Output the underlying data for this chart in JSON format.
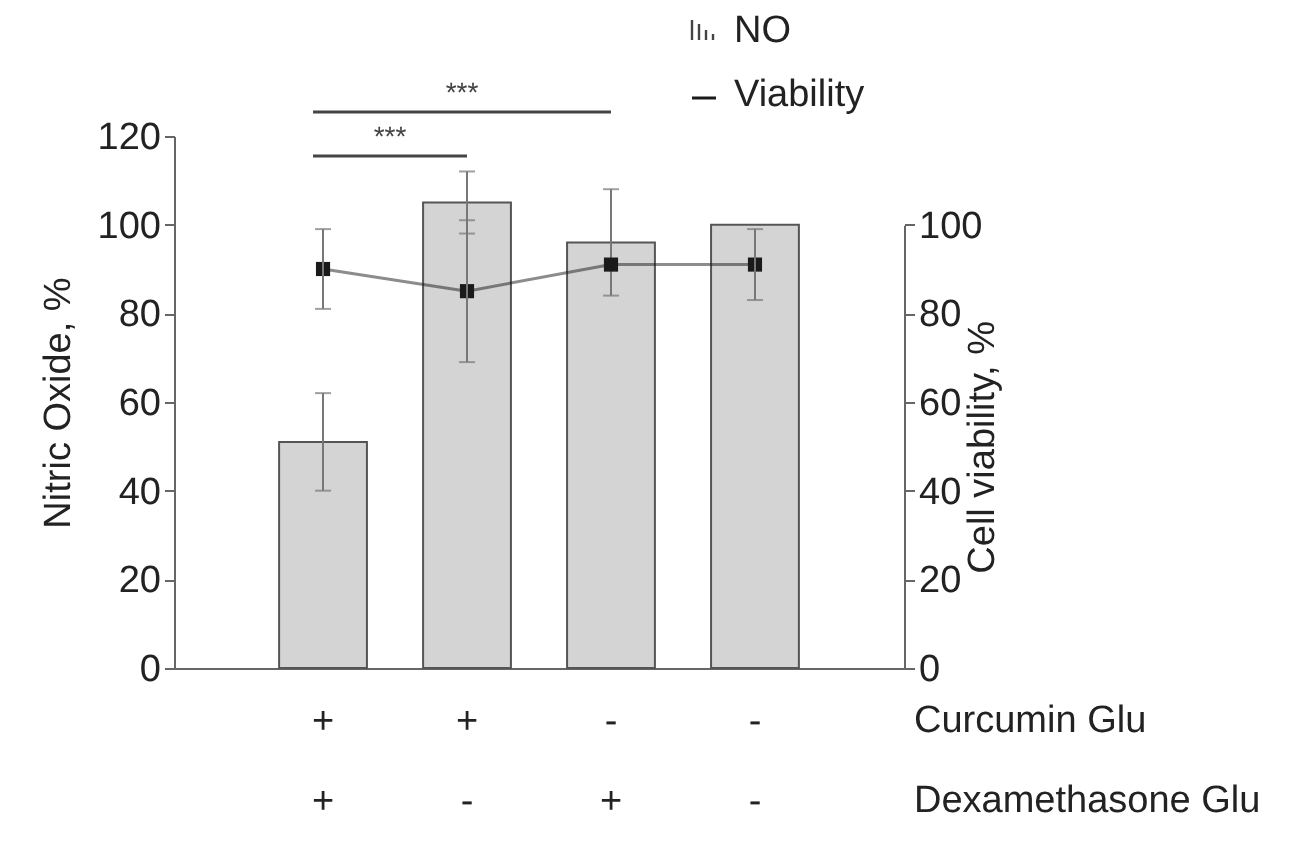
{
  "chart_data": {
    "type": "bar",
    "categories": [
      "+\n+",
      "+\n-",
      "-\n+",
      "-\n-"
    ],
    "ylabel": "Nitric Oxide, %",
    "y2label": "Cell viability, %",
    "ylim": [
      0,
      120
    ],
    "yticks": [
      0,
      20,
      40,
      60,
      80,
      100,
      120
    ],
    "y2lim": [
      0,
      100
    ],
    "y2ticks": [
      0,
      20,
      40,
      60,
      80,
      100
    ],
    "series": [
      {
        "name": "NO",
        "color": "#d4d4d4",
        "values": [
          51,
          105,
          96,
          100
        ],
        "errors": [
          11,
          7,
          12,
          null
        ]
      },
      {
        "name": "Viability",
        "type": "line",
        "axis": "y2",
        "color": "#1a1a1a",
        "marker": "square",
        "values": [
          90,
          85,
          91,
          91
        ],
        "errors": [
          9,
          16,
          null,
          8
        ]
      }
    ],
    "annotations": [
      "***",
      "***",
      "Curcumin Glu",
      "Dexamethasone Glu"
    ],
    "legend": "top right",
    "grid": false
  }
}
